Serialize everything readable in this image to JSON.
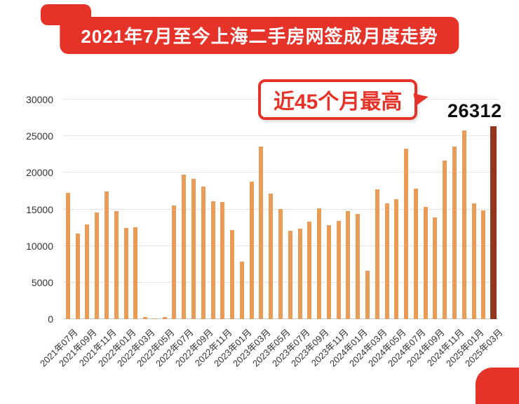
{
  "page": {
    "title_banner": "2021年7月至今上海二手房网签成月度走势",
    "accent_color": "#E6332A"
  },
  "annotation": {
    "callout": "近45个月最高",
    "value_label": "26312"
  },
  "chart_data": {
    "type": "bar",
    "title": "2021年7月至今上海二手房网签成月度走势",
    "xlabel": "",
    "ylabel": "",
    "ylim": [
      0,
      30000
    ],
    "yticks": [
      0,
      5000,
      10000,
      15000,
      20000,
      25000,
      30000
    ],
    "grid": true,
    "x_tick_every": 2,
    "bar_color": "#EA9B55",
    "highlight_color": "#93361F",
    "highlight_index": 44,
    "highlight_value_label": "26312",
    "highlight_annotation": "近45个月最高",
    "categories": [
      "2021年07月",
      "2021年08月",
      "2021年09月",
      "2021年10月",
      "2021年11月",
      "2021年12月",
      "2022年01月",
      "2022年02月",
      "2022年03月",
      "2022年04月",
      "2022年05月",
      "2022年06月",
      "2022年07月",
      "2022年08月",
      "2022年09月",
      "2022年10月",
      "2022年11月",
      "2022年12月",
      "2023年01月",
      "2023年02月",
      "2023年03月",
      "2023年04月",
      "2023年05月",
      "2023年06月",
      "2023年07月",
      "2023年08月",
      "2023年09月",
      "2023年10月",
      "2023年11月",
      "2023年12月",
      "2024年01月",
      "2024年02月",
      "2024年03月",
      "2024年04月",
      "2024年05月",
      "2024年06月",
      "2024年07月",
      "2024年08月",
      "2024年09月",
      "2024年10月",
      "2024年11月",
      "2024年12月",
      "2025年01月",
      "2025年02月",
      "2025年03月"
    ],
    "values": [
      17300,
      11700,
      12900,
      14600,
      17400,
      14800,
      12500,
      12600,
      300,
      100,
      300,
      15500,
      19700,
      19200,
      18100,
      16100,
      16000,
      12200,
      7900,
      18800,
      23600,
      17200,
      15000,
      12100,
      12400,
      13300,
      15100,
      12800,
      13400,
      14800,
      14400,
      6600,
      17700,
      15800,
      16400,
      23300,
      17800,
      15300,
      13900,
      21700,
      23600,
      25800,
      15800,
      14900,
      26312
    ]
  }
}
